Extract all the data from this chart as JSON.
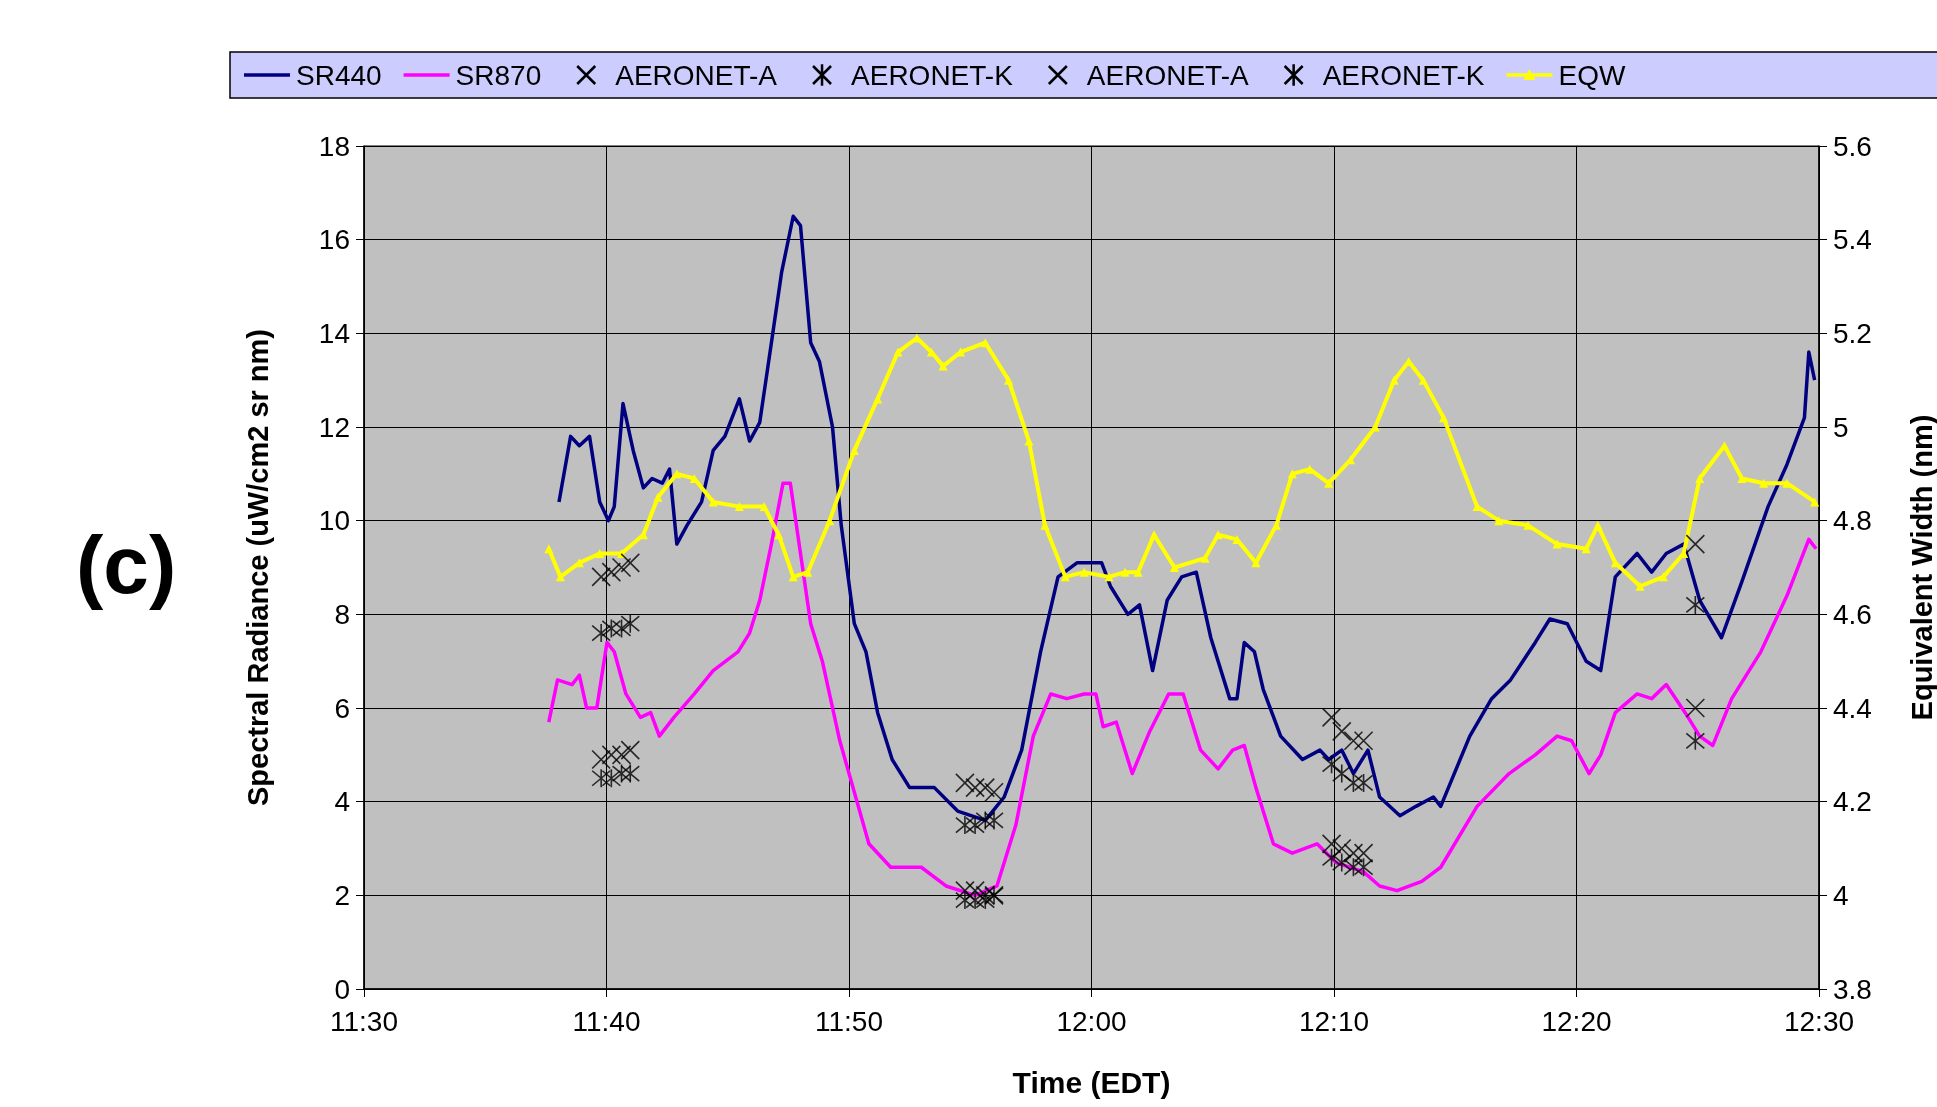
{
  "chart_data": {
    "type": "line",
    "xlabel": "Time (EDT)",
    "ylabel": "Spectral Radiance (uW/cm2 sr nm)",
    "y2label": "Equivalent Width (nm)",
    "annotations": [
      "(c)"
    ],
    "xlim": [
      11.5,
      12.5
    ],
    "xticks": [
      {
        "value": 11.5,
        "label": "11:30"
      },
      {
        "value": 11.6667,
        "label": "11:40"
      },
      {
        "value": 11.8333,
        "label": "11:50"
      },
      {
        "value": 12,
        "label": "12:00"
      },
      {
        "value": 12.1667,
        "label": "12:10"
      },
      {
        "value": 12.3333,
        "label": "12:20"
      },
      {
        "value": 12.5,
        "label": "12:30"
      }
    ],
    "ylim": [
      0,
      18
    ],
    "yticks": [
      0,
      2,
      4,
      6,
      8,
      10,
      12,
      14,
      16,
      18
    ],
    "y2lim": [
      3.8,
      5.6
    ],
    "y2ticks": [
      3.8,
      4,
      4.2,
      4.4,
      4.6,
      4.8,
      5,
      5.2,
      5.4,
      5.6
    ],
    "grid": true,
    "legend": "top",
    "series": [
      {
        "name": "SR440",
        "type": "line",
        "color": "#000080",
        "x": [
          11.634,
          11.642,
          11.648,
          11.655,
          11.662,
          11.668,
          11.672,
          11.678,
          11.685,
          11.692,
          11.698,
          11.705,
          11.71,
          11.715,
          11.722,
          11.732,
          11.74,
          11.748,
          11.758,
          11.765,
          11.772,
          11.78,
          11.787,
          11.795,
          11.8,
          11.807,
          11.813,
          11.822,
          11.828,
          11.837,
          11.845,
          11.853,
          11.863,
          11.875,
          11.892,
          11.908,
          11.927,
          11.94,
          11.952,
          11.965,
          11.977,
          11.99,
          12.007,
          12.013,
          12.025,
          12.033,
          12.042,
          12.052,
          12.062,
          12.072,
          12.082,
          12.095,
          12.1,
          12.105,
          12.112,
          12.118,
          12.13,
          12.145,
          12.157,
          12.163,
          12.172,
          12.18,
          12.19,
          12.198,
          12.212,
          12.223,
          12.235,
          12.24,
          12.26,
          12.275,
          12.288,
          12.305,
          12.315,
          12.327,
          12.34,
          12.35,
          12.36,
          12.375,
          12.385,
          12.395,
          12.407,
          12.418,
          12.433,
          12.447,
          12.465,
          12.478,
          12.49,
          12.493,
          12.497
        ],
        "values": [
          10.4,
          11.8,
          11.6,
          11.8,
          10.4,
          10.0,
          10.3,
          12.5,
          11.5,
          10.7,
          10.9,
          10.8,
          11.1,
          9.5,
          9.9,
          10.4,
          11.5,
          11.8,
          12.6,
          11.7,
          12.1,
          13.8,
          15.3,
          16.5,
          16.3,
          13.8,
          13.4,
          12.0,
          9.9,
          7.8,
          7.2,
          5.9,
          4.9,
          4.3,
          4.3,
          3.8,
          3.6,
          4.1,
          5.1,
          7.2,
          8.8,
          9.1,
          9.1,
          8.6,
          8.0,
          8.2,
          6.8,
          8.3,
          8.8,
          8.9,
          7.5,
          6.2,
          6.2,
          7.4,
          7.2,
          6.4,
          5.4,
          4.9,
          5.1,
          4.9,
          5.1,
          4.6,
          5.1,
          4.1,
          3.7,
          3.9,
          4.1,
          3.9,
          5.4,
          6.2,
          6.6,
          7.4,
          7.9,
          7.8,
          7.0,
          6.8,
          8.8,
          9.3,
          8.9,
          9.3,
          9.5,
          8.3,
          7.5,
          8.7,
          10.3,
          11.2,
          12.2,
          13.6,
          13.0
        ]
      },
      {
        "name": "SR870",
        "type": "line",
        "color": "#ff00ff",
        "x": [
          11.627,
          11.633,
          11.643,
          11.648,
          11.653,
          11.66,
          11.667,
          11.672,
          11.68,
          11.69,
          11.697,
          11.703,
          11.713,
          11.727,
          11.74,
          11.757,
          11.765,
          11.772,
          11.78,
          11.788,
          11.793,
          11.8,
          11.807,
          11.815,
          11.827,
          11.837,
          11.847,
          11.862,
          11.883,
          11.9,
          11.92,
          11.935,
          11.948,
          11.96,
          11.972,
          11.983,
          11.995,
          12.003,
          12.008,
          12.017,
          12.028,
          12.04,
          12.053,
          12.063,
          12.075,
          12.087,
          12.097,
          12.105,
          12.113,
          12.125,
          12.138,
          12.155,
          12.168,
          12.187,
          12.198,
          12.21,
          12.227,
          12.24,
          12.265,
          12.287,
          12.305,
          12.32,
          12.33,
          12.342,
          12.35,
          12.36,
          12.375,
          12.385,
          12.395,
          12.408,
          12.418,
          12.427,
          12.44,
          12.46,
          12.478,
          12.493,
          12.498
        ],
        "values": [
          5.7,
          6.6,
          6.5,
          6.7,
          6.0,
          6.0,
          7.4,
          7.2,
          6.3,
          5.8,
          5.9,
          5.4,
          5.8,
          6.3,
          6.8,
          7.2,
          7.6,
          8.3,
          9.5,
          10.8,
          10.8,
          9.3,
          7.8,
          7.0,
          5.3,
          4.2,
          3.1,
          2.6,
          2.6,
          2.2,
          2.0,
          2.2,
          3.5,
          5.4,
          6.3,
          6.2,
          6.3,
          6.3,
          5.6,
          5.7,
          4.6,
          5.5,
          6.3,
          6.3,
          5.1,
          4.7,
          5.1,
          5.2,
          4.3,
          3.1,
          2.9,
          3.1,
          2.7,
          2.5,
          2.2,
          2.1,
          2.3,
          2.6,
          3.9,
          4.6,
          5.0,
          5.4,
          5.3,
          4.6,
          5.0,
          5.9,
          6.3,
          6.2,
          6.5,
          5.9,
          5.4,
          5.2,
          6.2,
          7.2,
          8.4,
          9.6,
          9.4
        ]
      },
      {
        "name": "AERONET-A",
        "type": "scatter",
        "marker": "cross",
        "color": "#000000",
        "x": [
          11.663,
          11.67,
          11.677,
          11.683,
          11.913,
          11.92,
          11.927,
          11.933,
          12.165,
          12.172,
          12.18,
          12.187,
          12.415
        ],
        "values": [
          8.8,
          8.9,
          9.0,
          9.1,
          4.4,
          4.3,
          4.3,
          4.2,
          5.8,
          5.5,
          5.3,
          5.3,
          9.5
        ]
      },
      {
        "name": "AERONET-K",
        "type": "scatter",
        "color": "#000000",
        "x": [
          11.663,
          11.67,
          11.677,
          11.683,
          11.913,
          11.92,
          11.927,
          11.933,
          12.165,
          12.172,
          12.18,
          12.187,
          12.415
        ],
        "values": [
          7.6,
          7.7,
          7.7,
          7.8,
          3.5,
          3.5,
          3.6,
          3.6,
          4.8,
          4.6,
          4.4,
          4.4,
          8.2
        ]
      },
      {
        "name": "AERONET-A",
        "type": "scatter",
        "marker": "cross",
        "color": "#000000",
        "x": [
          11.663,
          11.67,
          11.677,
          11.683,
          11.913,
          11.92,
          11.927,
          11.933,
          12.165,
          12.172,
          12.18,
          12.187,
          12.415
        ],
        "values": [
          4.9,
          5.0,
          5.0,
          5.1,
          2.1,
          2.1,
          2.0,
          2.0,
          3.1,
          3.0,
          2.9,
          2.9,
          6.0
        ]
      },
      {
        "name": "AERONET-K",
        "type": "scatter",
        "color": "#000000",
        "x": [
          11.663,
          11.67,
          11.677,
          11.683,
          11.913,
          11.92,
          11.927,
          11.933,
          12.165,
          12.172,
          12.18,
          12.187,
          12.415
        ],
        "values": [
          4.5,
          4.5,
          4.6,
          4.6,
          1.9,
          1.9,
          1.9,
          2.0,
          2.8,
          2.7,
          2.6,
          2.6,
          5.3
        ]
      },
      {
        "name": "EQW",
        "type": "line",
        "axis": "y2",
        "marker": "triangle",
        "color": "#ffff00",
        "x": [
          11.627,
          11.635,
          11.648,
          11.662,
          11.677,
          11.692,
          11.702,
          11.715,
          11.727,
          11.74,
          11.758,
          11.775,
          11.785,
          11.795,
          11.805,
          11.82,
          11.837,
          11.853,
          11.867,
          11.88,
          11.89,
          11.898,
          11.91,
          11.927,
          11.943,
          11.957,
          11.968,
          11.982,
          11.995,
          12.012,
          12.023,
          12.032,
          12.043,
          12.057,
          12.078,
          12.087,
          12.1,
          12.113,
          12.127,
          12.138,
          12.15,
          12.163,
          12.178,
          12.195,
          12.208,
          12.218,
          12.228,
          12.242,
          12.265,
          12.28,
          12.3,
          12.32,
          12.34,
          12.348,
          12.36,
          12.377,
          12.393,
          12.407,
          12.418,
          12.435,
          12.447,
          12.462,
          12.478,
          12.497
        ],
        "values": [
          4.74,
          4.68,
          4.71,
          4.73,
          4.73,
          4.77,
          4.85,
          4.9,
          4.89,
          4.84,
          4.83,
          4.83,
          4.77,
          4.68,
          4.69,
          4.8,
          4.95,
          5.06,
          5.16,
          5.19,
          5.16,
          5.13,
          5.16,
          5.18,
          5.1,
          4.97,
          4.79,
          4.68,
          4.69,
          4.68,
          4.69,
          4.69,
          4.77,
          4.7,
          4.72,
          4.77,
          4.76,
          4.71,
          4.79,
          4.9,
          4.91,
          4.88,
          4.93,
          5.0,
          5.1,
          5.14,
          5.1,
          5.02,
          4.83,
          4.8,
          4.79,
          4.75,
          4.74,
          4.79,
          4.71,
          4.66,
          4.68,
          4.73,
          4.89,
          4.96,
          4.89,
          4.88,
          4.88,
          4.84
        ]
      }
    ]
  }
}
